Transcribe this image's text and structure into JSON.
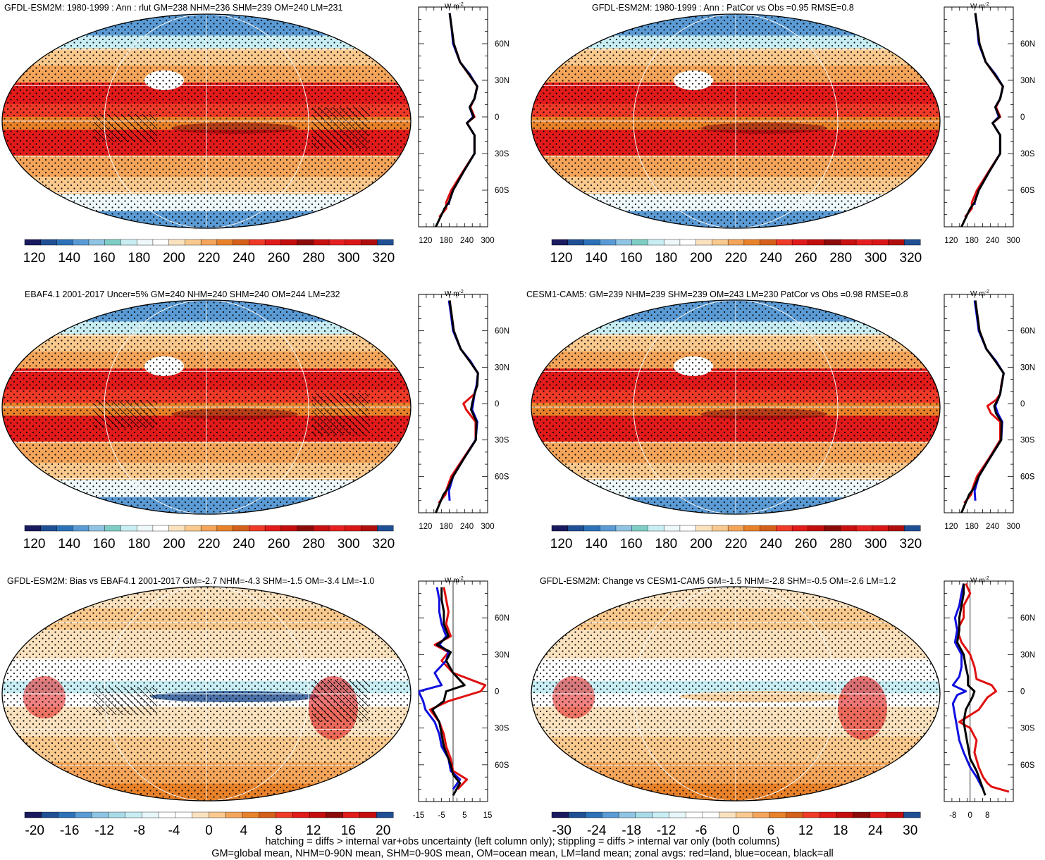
{
  "footer": {
    "line1": "hatching = diffs > internal var+obs uncertainty (left column only); stippling = diffs > internal var only (both columns)",
    "line2": "GM=global mean, NHM=0-90N mean, SHM=0-90S mean, OM=ocean mean, LM=land mean; zonal avgs: red=land, blue=ocean, black=all"
  },
  "palettes": {
    "absolute": [
      "#1a1a5e",
      "#1f4f94",
      "#2c72b8",
      "#5b9bd5",
      "#8fc4e3",
      "#7ecdc4",
      "#c8eef4",
      "#eef8fa",
      "#ffffff",
      "#fbe2bf",
      "#f9c98e",
      "#f4a55a",
      "#e8822a",
      "#d4601a",
      "#f03a28",
      "#e11a1a",
      "#c40d0d",
      "#8b0a0a",
      "#c81010",
      "#e62020",
      "#d91616",
      "#b00d0d",
      "#1f4f94"
    ],
    "difference": [
      "#1a1a5e",
      "#1f4f94",
      "#2c72b8",
      "#5b9bd5",
      "#8fc4e3",
      "#a8dbe7",
      "#c8eef4",
      "#e6f6f9",
      "#ffffff",
      "#ffffff",
      "#fbe2bf",
      "#f9c98e",
      "#f4a55a",
      "#e8822a",
      "#d4601a",
      "#f03a28",
      "#e11a1a",
      "#c40d0d",
      "#8b0a0a",
      "#e11a1a",
      "#c40d0d",
      "#1f4f94"
    ]
  },
  "chart_data": [
    {
      "type": "heatmap",
      "title": "GFDL-ESM2M: 1980-1999 : Ann : rlut GM=238 NHM=236 SHM=239 OM=240 LM=231",
      "colorbar_ticks": [
        "120",
        "140",
        "160",
        "180",
        "200",
        "220",
        "240",
        "260",
        "280",
        "300",
        "320"
      ],
      "zonal_unit": "W m-2",
      "zonal_xticks": [
        "120",
        "180",
        "240",
        "300"
      ],
      "zonal_xlim": [
        100,
        300
      ],
      "zonal_yticks": [
        "60N",
        "30N",
        "0",
        "30S",
        "60S"
      ],
      "zonal_ylim": [
        -90,
        90
      ],
      "series": [
        {
          "name": "land",
          "color": "#e01010",
          "lat": [
            -82,
            -75,
            -70,
            -60,
            -45,
            -30,
            -15,
            -5,
            0,
            8,
            15,
            25,
            35,
            45,
            60,
            75,
            85
          ],
          "values": [
            160,
            180,
            180,
            195,
            228,
            262,
            262,
            240,
            262,
            250,
            262,
            270,
            245,
            220,
            202,
            195,
            190
          ]
        },
        {
          "name": "ocean",
          "color": "#1010e0",
          "lat": [
            -72,
            -70,
            -60,
            -45,
            -30,
            -15,
            -5,
            0,
            8,
            15,
            25,
            35,
            45,
            60,
            75,
            85
          ],
          "values": [
            188,
            188,
            200,
            230,
            262,
            262,
            240,
            258,
            248,
            262,
            270,
            248,
            220,
            200,
            195,
            190
          ]
        },
        {
          "name": "all",
          "color": "#000000",
          "lat": [
            -90,
            -75,
            -70,
            -60,
            -45,
            -30,
            -15,
            -5,
            0,
            8,
            15,
            25,
            35,
            45,
            60,
            75,
            85
          ],
          "values": [
            150,
            175,
            188,
            200,
            230,
            262,
            262,
            240,
            260,
            248,
            262,
            270,
            246,
            220,
            202,
            195,
            190
          ]
        }
      ]
    },
    {
      "type": "heatmap",
      "title": "GFDL-ESM2M: 1980-1999 : Ann : PatCor vs Obs =0.95 RMSE=0.8",
      "colorbar_ticks": [
        "120",
        "140",
        "160",
        "180",
        "200",
        "220",
        "240",
        "260",
        "280",
        "300",
        "320"
      ],
      "zonal_unit": "W m-2",
      "zonal_xticks": [
        "120",
        "180",
        "240",
        "300"
      ],
      "zonal_xlim": [
        100,
        300
      ],
      "zonal_yticks": [
        "60N",
        "30N",
        "0",
        "30S",
        "60S"
      ],
      "zonal_ylim": [
        -90,
        90
      ],
      "series": [
        {
          "name": "land",
          "color": "#e01010",
          "lat": [
            -82,
            -75,
            -70,
            -60,
            -45,
            -30,
            -15,
            -5,
            0,
            8,
            15,
            25,
            35,
            45,
            60,
            75,
            85
          ],
          "values": [
            160,
            180,
            180,
            195,
            228,
            262,
            262,
            240,
            262,
            250,
            262,
            270,
            245,
            220,
            202,
            195,
            190
          ]
        },
        {
          "name": "ocean",
          "color": "#1010e0",
          "lat": [
            -72,
            -70,
            -60,
            -45,
            -30,
            -15,
            -5,
            0,
            8,
            15,
            25,
            35,
            45,
            60,
            75,
            85
          ],
          "values": [
            188,
            188,
            200,
            230,
            262,
            262,
            240,
            258,
            248,
            262,
            270,
            248,
            220,
            200,
            195,
            190
          ]
        },
        {
          "name": "all",
          "color": "#000000",
          "lat": [
            -90,
            -75,
            -70,
            -60,
            -45,
            -30,
            -15,
            -5,
            0,
            8,
            15,
            25,
            35,
            45,
            60,
            75,
            85
          ],
          "values": [
            150,
            175,
            188,
            200,
            230,
            262,
            262,
            240,
            260,
            248,
            262,
            270,
            246,
            220,
            202,
            195,
            190
          ]
        }
      ]
    },
    {
      "type": "heatmap",
      "title": "EBAF4.1 2001-2017 Uncer=5% GM=240 NHM=240 SHM=240 OM=244 LM=232",
      "colorbar_ticks": [
        "120",
        "140",
        "160",
        "180",
        "200",
        "220",
        "240",
        "260",
        "280",
        "300",
        "320"
      ],
      "zonal_unit": "W m-2",
      "zonal_xticks": [
        "120",
        "180",
        "240",
        "300"
      ],
      "zonal_xlim": [
        100,
        300
      ],
      "zonal_yticks": [
        "60N",
        "30N",
        "0",
        "30S",
        "60S"
      ],
      "zonal_ylim": [
        -90,
        90
      ],
      "series": [
        {
          "name": "land",
          "color": "#e01010",
          "lat": [
            -82,
            -75,
            -70,
            -60,
            -45,
            -30,
            -15,
            -5,
            0,
            8,
            15,
            25,
            35,
            45,
            60,
            75,
            85
          ],
          "values": [
            158,
            178,
            182,
            195,
            230,
            265,
            265,
            238,
            230,
            262,
            268,
            272,
            248,
            222,
            202,
            195,
            190
          ]
        },
        {
          "name": "ocean",
          "color": "#1010e0",
          "lat": [
            -80,
            -72,
            -60,
            -45,
            -30,
            -15,
            -5,
            0,
            8,
            15,
            25,
            35,
            45,
            60,
            75,
            85
          ],
          "values": [
            190,
            188,
            200,
            232,
            265,
            270,
            255,
            258,
            262,
            268,
            272,
            250,
            222,
            200,
            193,
            188
          ]
        },
        {
          "name": "all",
          "color": "#000000",
          "lat": [
            -90,
            -75,
            -70,
            -60,
            -45,
            -30,
            -15,
            -5,
            0,
            8,
            15,
            25,
            35,
            45,
            60,
            75,
            85
          ],
          "values": [
            150,
            172,
            185,
            200,
            232,
            266,
            268,
            252,
            255,
            262,
            270,
            272,
            248,
            222,
            202,
            195,
            190
          ]
        }
      ]
    },
    {
      "type": "heatmap",
      "title": "CESM1-CAM5: GM=239 NHM=239 SHM=239 OM=243 LM=230 PatCor vs Obs =0.98 RMSE=0.8",
      "colorbar_ticks": [
        "120",
        "140",
        "160",
        "180",
        "200",
        "220",
        "240",
        "260",
        "280",
        "300",
        "320"
      ],
      "zonal_unit": "W m-2",
      "zonal_xticks": [
        "120",
        "180",
        "240",
        "300"
      ],
      "zonal_xlim": [
        100,
        300
      ],
      "zonal_yticks": [
        "60N",
        "30N",
        "0",
        "30S",
        "60S"
      ],
      "zonal_ylim": [
        -90,
        90
      ],
      "series": [
        {
          "name": "land",
          "color": "#e01010",
          "lat": [
            -82,
            -75,
            -70,
            -60,
            -45,
            -30,
            -15,
            -8,
            -2,
            3,
            8,
            15,
            25,
            35,
            45,
            60,
            75,
            85
          ],
          "values": [
            158,
            178,
            182,
            195,
            230,
            262,
            262,
            235,
            225,
            250,
            262,
            265,
            272,
            248,
            222,
            202,
            195,
            190
          ]
        },
        {
          "name": "ocean",
          "color": "#1010e0",
          "lat": [
            -80,
            -72,
            -60,
            -45,
            -30,
            -15,
            -8,
            -2,
            3,
            8,
            15,
            25,
            35,
            45,
            60,
            75,
            85
          ],
          "values": [
            190,
            188,
            200,
            232,
            265,
            268,
            255,
            248,
            255,
            262,
            266,
            272,
            250,
            222,
            200,
            193,
            188
          ]
        },
        {
          "name": "all",
          "color": "#000000",
          "lat": [
            -90,
            -75,
            -70,
            -60,
            -45,
            -30,
            -15,
            -8,
            -2,
            3,
            8,
            15,
            25,
            35,
            45,
            60,
            75,
            85
          ],
          "values": [
            150,
            172,
            185,
            200,
            232,
            265,
            266,
            250,
            245,
            255,
            262,
            266,
            272,
            248,
            222,
            202,
            195,
            190
          ]
        }
      ]
    },
    {
      "type": "heatmap",
      "title": "GFDL-ESM2M: Bias vs EBAF4.1 2001-2017 GM=-2.7 NHM=-4.3 SHM=-1.5 OM=-3.4 LM=-1.0",
      "colorbar_ticks": [
        "-20",
        "-16",
        "-12",
        "-8",
        "-4",
        "0",
        "4",
        "8",
        "12",
        "16",
        "20"
      ],
      "zonal_unit": "W m-2",
      "zonal_xticks": [
        "-15",
        "-5",
        "5",
        "15"
      ],
      "zonal_xlim": [
        -15,
        15
      ],
      "zonal_yticks": [
        "60N",
        "30N",
        "0",
        "30S",
        "60S"
      ],
      "zonal_ylim": [
        -90,
        90
      ],
      "zero_line": true,
      "series": [
        {
          "name": "land",
          "color": "#e01010",
          "lat": [
            -80,
            -72,
            -65,
            -55,
            -45,
            -35,
            -25,
            -15,
            -8,
            0,
            5,
            15,
            25,
            32,
            38,
            45,
            55,
            65,
            75,
            85
          ],
          "values": [
            2,
            6,
            0,
            -1,
            -3,
            -4,
            -6,
            -10,
            -2,
            12,
            14,
            0,
            -5,
            -2,
            -8,
            -1,
            -3,
            -2,
            -3,
            -4
          ]
        },
        {
          "name": "ocean",
          "color": "#1010e0",
          "lat": [
            -80,
            -72,
            -65,
            -55,
            -45,
            -35,
            -25,
            -15,
            -8,
            0,
            5,
            15,
            25,
            32,
            38,
            45,
            55,
            65,
            75,
            85
          ],
          "values": [
            0,
            3,
            -1,
            -2,
            -5,
            -6,
            -8,
            -12,
            -13,
            -15,
            -5,
            -8,
            -3,
            -2,
            -6,
            -3,
            -5,
            -6,
            -6,
            -7
          ]
        },
        {
          "name": "all",
          "color": "#000000",
          "lat": [
            -85,
            -75,
            -68,
            -60,
            -45,
            -35,
            -25,
            -15,
            -8,
            0,
            5,
            15,
            25,
            32,
            38,
            45,
            55,
            65,
            75,
            85
          ],
          "values": [
            0,
            3,
            0,
            -1,
            -4,
            -5,
            -6,
            -9,
            -4,
            -3,
            5,
            0,
            -3,
            -1,
            -7,
            -2,
            -4,
            -4,
            -5,
            -5
          ]
        }
      ]
    },
    {
      "type": "heatmap",
      "title": "GFDL-ESM2M: Change vs CESM1-CAM5 GM=-1.5 NHM=-2.8 SHM=-0.5 OM=-2.6 LM=1.2",
      "colorbar_ticks": [
        "-30",
        "-24",
        "-18",
        "-12",
        "-6",
        "0",
        "6",
        "12",
        "18",
        "24",
        "30"
      ],
      "zonal_unit": "W m-2",
      "zonal_xticks": [
        "-8",
        "0",
        "8"
      ],
      "zonal_xlim": [
        -12,
        20
      ],
      "zonal_yticks": [
        "60N",
        "30N",
        "0",
        "30S",
        "60S"
      ],
      "zonal_ylim": [
        -90,
        90
      ],
      "zero_line": true,
      "series": [
        {
          "name": "land",
          "color": "#e01010",
          "lat": [
            -82,
            -78,
            -75,
            -70,
            -62,
            -50,
            -40,
            -30,
            -25,
            -15,
            -5,
            0,
            5,
            10,
            20,
            30,
            40,
            50,
            60,
            70,
            80,
            88
          ],
          "values": [
            18,
            10,
            8,
            6,
            4,
            2,
            3,
            0,
            -5,
            4,
            8,
            12,
            10,
            3,
            2,
            0,
            -4,
            -6,
            -3,
            -3,
            0,
            -2
          ]
        },
        {
          "name": "ocean",
          "color": "#1010e0",
          "lat": [
            -80,
            -70,
            -62,
            -50,
            -40,
            -30,
            -20,
            -10,
            -3,
            0,
            5,
            12,
            20,
            30,
            40,
            50,
            60,
            70,
            80,
            88
          ],
          "values": [
            6,
            3,
            0,
            -3,
            -5,
            -6,
            -7,
            -8,
            -6,
            -2,
            -8,
            -5,
            -4,
            -4,
            -7,
            -6,
            -7,
            -5,
            -4,
            -3
          ]
        },
        {
          "name": "all",
          "color": "#000000",
          "lat": [
            -85,
            -75,
            -65,
            -55,
            -45,
            -35,
            -25,
            -15,
            -5,
            0,
            5,
            12,
            20,
            30,
            40,
            50,
            60,
            70,
            80,
            88
          ],
          "values": [
            7,
            5,
            3,
            0,
            -1,
            -2,
            -3,
            -2,
            1,
            2,
            -1,
            -1,
            -2,
            -3,
            -6,
            -5,
            -5,
            -4,
            -3,
            -3
          ]
        }
      ]
    }
  ]
}
